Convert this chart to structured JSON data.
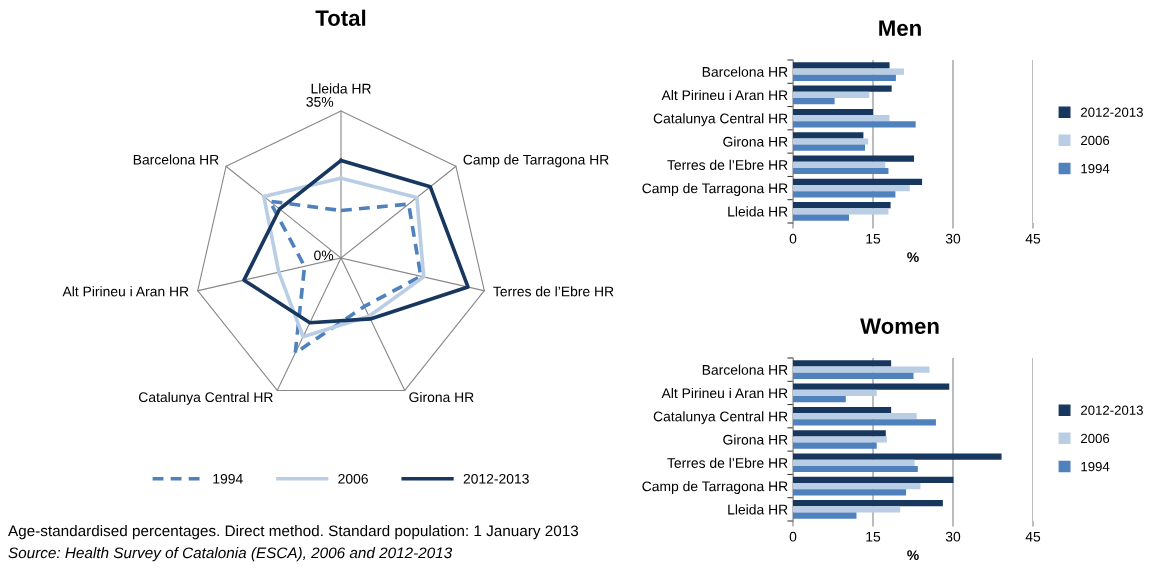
{
  "chart_data": [
    {
      "type": "radar",
      "title": "Total",
      "categories": [
        "Lleida HR",
        "Camp de Tarragona HR",
        "Terres de l’Ebre HR",
        "Girona HR",
        "Catalunya Central HR",
        "Alt Pirineu i Aran HR",
        "Barcelona HR"
      ],
      "series": [
        {
          "name": "1994",
          "color": "#4f81bd",
          "line_style": "dashed",
          "values": [
            11.3,
            20.6,
            19.5,
            12.8,
            25.1,
            8.9,
            21.7
          ]
        },
        {
          "name": "2006",
          "color": "#b9cde5",
          "line_style": "solid",
          "values": [
            19.0,
            23.1,
            20.2,
            15.4,
            20.8,
            15.2,
            23.5
          ]
        },
        {
          "name": "2012-2013",
          "color": "#17375e",
          "line_style": "solid",
          "values": [
            23.2,
            27.2,
            31.0,
            16.1,
            17.1,
            23.7,
            18.7
          ]
        }
      ],
      "ylim": [
        0,
        35
      ],
      "yticks": [
        {
          "value": 0,
          "label": "0%"
        },
        {
          "value": 35,
          "label": "35%"
        }
      ],
      "legend": "bottom",
      "grid": true,
      "annotations": [
        "Age-standardised percentages. Direct method. Standard population: 1 January 2013",
        "Source: Health Survey of Catalonia (ESCA), 2006 and 2012-2013"
      ]
    },
    {
      "type": "bar",
      "orientation": "horizontal",
      "title": "Men",
      "xlabel": "%",
      "categories": [
        "Barcelona HR",
        "Alt Pirineu i Aran HR",
        "Catalunya Central HR",
        "Girona HR",
        "Terres de l’Ebre HR",
        "Camp de Tarragona HR",
        "Lleida HR"
      ],
      "series": [
        {
          "name": "2012-2013",
          "color": "#17375e",
          "values": [
            18.1,
            18.5,
            15.0,
            13.2,
            22.7,
            24.2,
            18.3
          ]
        },
        {
          "name": "2006",
          "color": "#b9cde5",
          "values": [
            20.8,
            14.3,
            18.1,
            14.1,
            17.3,
            21.9,
            17.9
          ]
        },
        {
          "name": "1994",
          "color": "#4f81bd",
          "values": [
            19.3,
            7.8,
            23.0,
            13.5,
            17.9,
            19.2,
            10.5
          ]
        }
      ],
      "xlim": [
        0,
        45
      ],
      "xticks": [
        0,
        15,
        30,
        45
      ],
      "grid": "x",
      "legend": "right"
    },
    {
      "type": "bar",
      "orientation": "horizontal",
      "title": "Women",
      "xlabel": "%",
      "categories": [
        "Barcelona HR",
        "Alt Pirineu i Aran HR",
        "Catalunya Central HR",
        "Girona HR",
        "Terres de l’Ebre HR",
        "Camp de Tarragona HR",
        "Lleida HR"
      ],
      "series": [
        {
          "name": "2012-2013",
          "color": "#17375e",
          "values": [
            18.4,
            29.3,
            18.4,
            17.4,
            39.1,
            30.1,
            28.1
          ]
        },
        {
          "name": "2006",
          "color": "#b9cde5",
          "values": [
            25.6,
            15.7,
            23.2,
            17.6,
            22.8,
            23.9,
            20.1
          ]
        },
        {
          "name": "1994",
          "color": "#4f81bd",
          "values": [
            22.6,
            9.9,
            26.8,
            15.7,
            23.4,
            21.2,
            11.9
          ]
        }
      ],
      "xlim": [
        0,
        45
      ],
      "xticks": [
        0,
        15,
        30,
        45
      ],
      "grid": "x",
      "legend": "right"
    }
  ]
}
